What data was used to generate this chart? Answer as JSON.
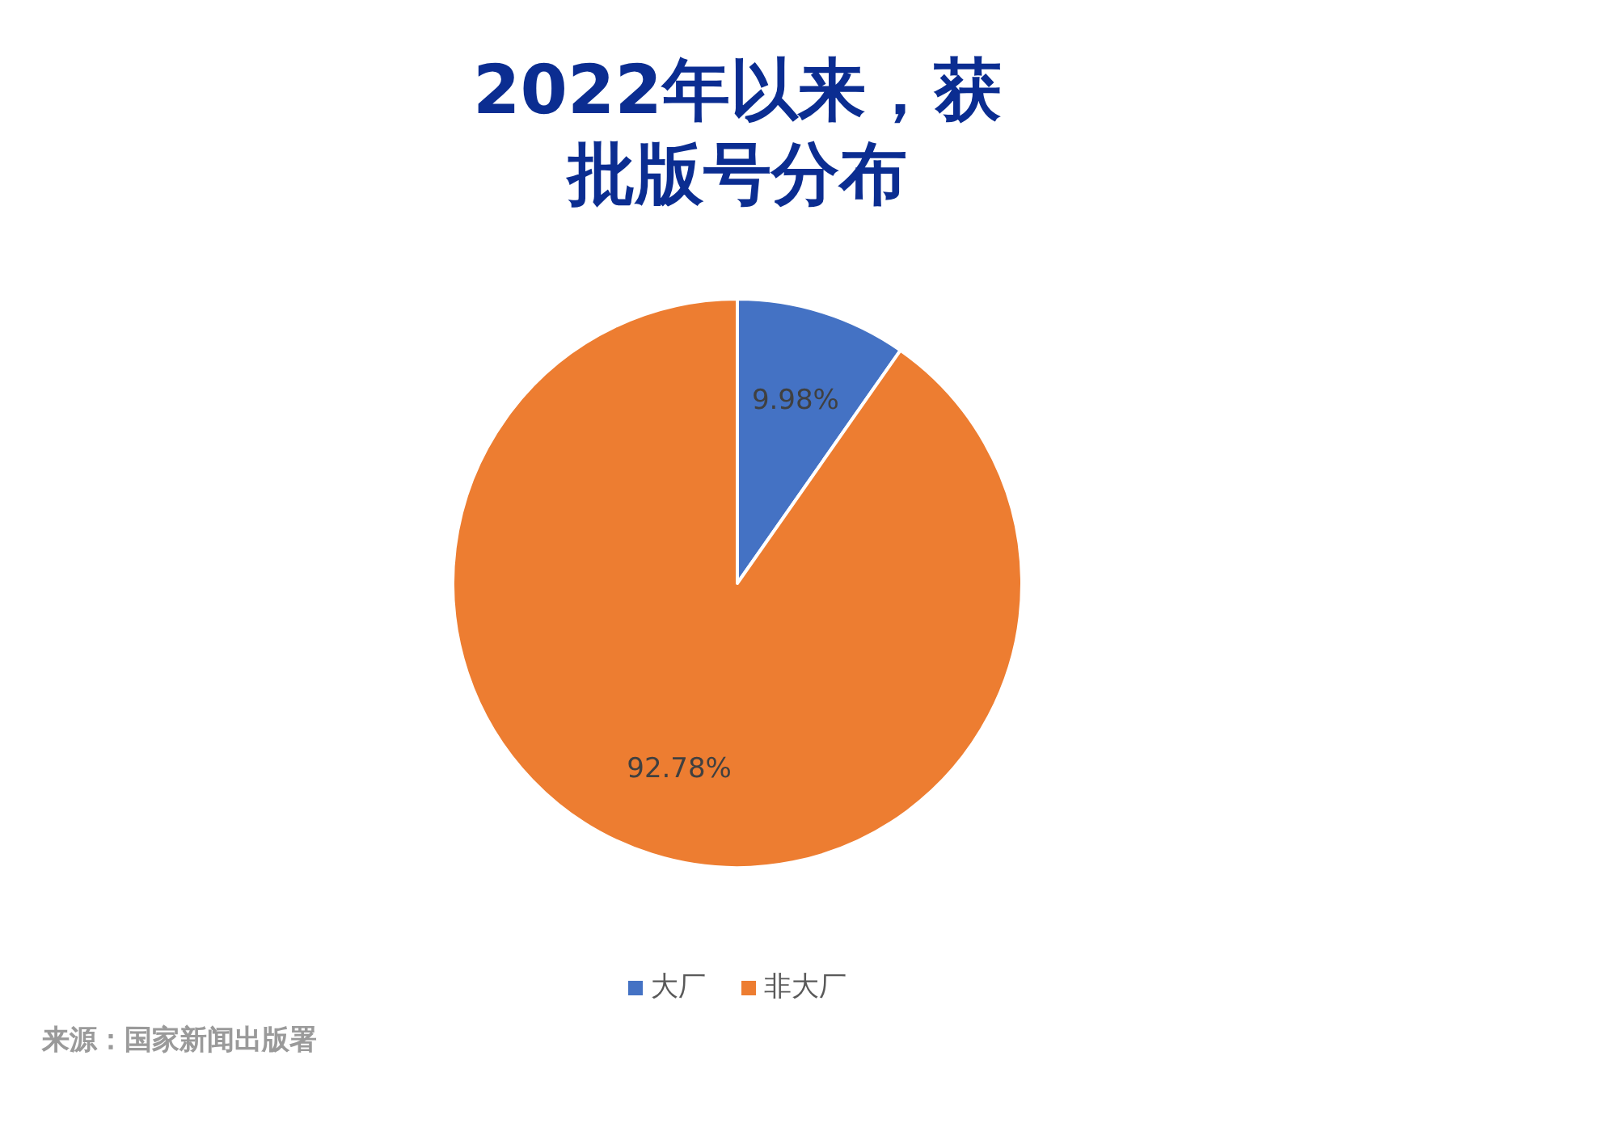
{
  "chart_data": {
    "type": "pie",
    "title": "2022年以来，获批版号分布",
    "categories": [
      "大厂",
      "非大厂"
    ],
    "values": [
      9.98,
      92.78
    ],
    "value_labels": [
      "9.98%",
      "92.78%"
    ],
    "colors": [
      "#4472c4",
      "#ed7d31"
    ],
    "legend": "bottom",
    "annotations": [
      "来源：国家新闻出版署"
    ]
  }
}
